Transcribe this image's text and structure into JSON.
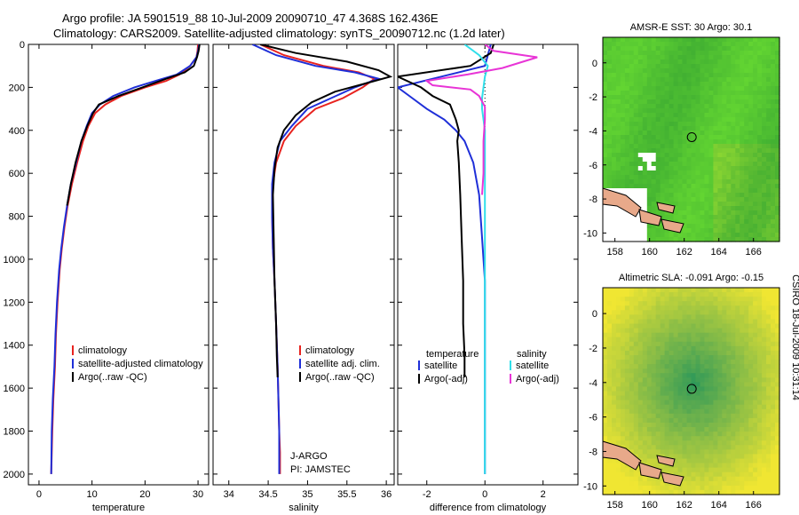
{
  "header": {
    "line1": "Argo profile: JA 5901519_88 10-Jul-2009 20090710_47 4.368S 162.436E",
    "line2": "Climatology: CARS2009. Satellite-adjusted climatology: synTS_20090712.nc (1.2d later)"
  },
  "side_text": "CSIRO 18-Jul-2009 10:31:14",
  "colors": {
    "climatology": "#e8231f",
    "satellite": "#1f2fd8",
    "argo": "#000000",
    "sat_salinity": "#30dfea",
    "argo_salinity": "#e834d6",
    "ocean_green": "#3dbd3d",
    "land": "#e8a98a"
  },
  "chart_data": [
    {
      "type": "line",
      "xlabel": "temperature",
      "xlim": [
        -2,
        32
      ],
      "ylim": [
        0,
        2050
      ],
      "y_reversed": true,
      "xticks": [
        "0",
        "10",
        "20",
        "30"
      ],
      "yticks": [
        "0",
        "200",
        "400",
        "600",
        "800",
        "1000",
        "1200",
        "1400",
        "1600",
        "1800",
        "2000"
      ],
      "legend": {
        "placement": "bottom-right",
        "labels": [
          "climatology",
          "satellite-adjusted climatology",
          "Argo(..raw -QC)"
        ]
      },
      "series": [
        {
          "name": "climatology",
          "x": [
            30,
            29.9,
            29.7,
            28.5,
            26.5,
            24,
            20,
            15.5,
            12.5,
            10.6,
            9.3,
            8.3,
            7.2,
            6.2,
            5.4,
            4.8,
            4.3,
            3.9,
            3.5,
            3.2,
            3,
            2.7,
            2.5,
            2.4,
            2.3
          ],
          "y": [
            0,
            30,
            60,
            100,
            140,
            170,
            200,
            240,
            280,
            320,
            380,
            450,
            550,
            650,
            750,
            850,
            950,
            1050,
            1200,
            1350,
            1500,
            1650,
            1800,
            1900,
            2000
          ]
        },
        {
          "name": "satellite-adjusted climatology",
          "x": [
            30.2,
            30,
            29.7,
            28.5,
            26,
            22,
            18,
            14,
            11.5,
            10,
            9,
            8,
            7,
            6,
            5.3,
            4.7,
            4.2,
            3.8,
            3.4,
            3.1,
            2.9,
            2.6,
            2.4,
            2.35,
            2.3
          ],
          "y": [
            0,
            30,
            60,
            100,
            140,
            170,
            200,
            240,
            280,
            320,
            380,
            450,
            550,
            650,
            750,
            850,
            950,
            1050,
            1200,
            1350,
            1500,
            1650,
            1800,
            1900,
            2000
          ]
        },
        {
          "name": "Argo(..raw -QC)",
          "x": [
            30.3,
            30.1,
            29.8,
            29.2,
            27.5,
            24,
            19.5,
            15,
            11.3,
            10.2,
            9.1,
            8,
            6.9,
            6,
            5.3
          ],
          "y": [
            0,
            30,
            60,
            100,
            130,
            160,
            200,
            240,
            280,
            320,
            380,
            450,
            550,
            650,
            750
          ]
        }
      ]
    },
    {
      "type": "line",
      "xlabel": "salinity",
      "xlim": [
        33.8,
        36.1
      ],
      "ylim": [
        0,
        2050
      ],
      "y_reversed": true,
      "xticks": [
        "34",
        "34.5",
        "35",
        "35.5",
        "36"
      ],
      "legend": {
        "placement": "bottom-right",
        "labels": [
          "climatology",
          "satellite adj. clim.",
          "Argo(..raw -QC)"
        ]
      },
      "annotation": [
        "J-ARGO",
        "PI: JAMSTEC"
      ],
      "series": [
        {
          "name": "climatology",
          "x": [
            34.4,
            34.7,
            35.2,
            35.65,
            35.85,
            35.7,
            35.45,
            35.1,
            34.85,
            34.7,
            34.6,
            34.56,
            34.55,
            34.56,
            34.58,
            34.6,
            34.62,
            34.63,
            34.64,
            34.65,
            34.65
          ],
          "y": [
            0,
            50,
            100,
            130,
            160,
            200,
            250,
            300,
            380,
            450,
            550,
            650,
            800,
            950,
            1100,
            1300,
            1500,
            1650,
            1800,
            1900,
            2000
          ]
        },
        {
          "name": "satellite adj. clim.",
          "x": [
            34.3,
            34.6,
            35.1,
            35.6,
            35.9,
            35.6,
            35.3,
            35,
            34.8,
            34.65,
            34.58,
            34.55,
            34.55,
            34.56,
            34.58,
            34.6,
            34.62,
            34.63,
            34.64,
            34.64,
            34.64
          ],
          "y": [
            0,
            50,
            100,
            130,
            160,
            200,
            250,
            300,
            380,
            450,
            550,
            650,
            800,
            950,
            1100,
            1300,
            1500,
            1650,
            1800,
            1900,
            2000
          ]
        },
        {
          "name": "Argo(..raw -QC)",
          "x": [
            34.4,
            34.85,
            35.5,
            35.9,
            36.05,
            35.75,
            35.35,
            35.05,
            34.85,
            34.7,
            34.62,
            34.58,
            34.56,
            34.57,
            34.58,
            34.6,
            34.61,
            34.62
          ],
          "y": [
            0,
            40,
            80,
            120,
            150,
            180,
            220,
            270,
            330,
            400,
            480,
            580,
            700,
            900,
            1100,
            1300,
            1450,
            1550
          ]
        }
      ]
    },
    {
      "type": "line",
      "xlabel": "difference from climatology",
      "xlim": [
        -3,
        3.2
      ],
      "ylim": [
        0,
        2050
      ],
      "y_reversed": true,
      "xticks": [
        "-2",
        "0",
        "2"
      ],
      "zero_line": "dotted",
      "legend": {
        "placement": "bottom",
        "headers": [
          "temperature",
          "salinity"
        ],
        "labels": [
          "satellite",
          "Argo(-adj)",
          "satellite",
          "Argo(-adj)"
        ]
      },
      "series": [
        {
          "name": "temperature satellite",
          "x": [
            0.2,
            0.1,
            0,
            -1.5,
            -3,
            -2.5,
            -2,
            -1.4,
            -1,
            -0.7,
            -0.4,
            -0.2,
            -0.1,
            0,
            0,
            0,
            0,
            0
          ],
          "y": [
            0,
            50,
            100,
            150,
            200,
            250,
            300,
            350,
            400,
            450,
            550,
            700,
            900,
            1100,
            1400,
            1700,
            1900,
            2000
          ]
        },
        {
          "name": "temperature Argo(-adj)",
          "x": [
            0.3,
            0.2,
            -0.5,
            -3,
            -2.2,
            -1.8,
            -1.2,
            -1,
            -0.9,
            -0.95,
            -0.9,
            -0.85,
            -0.8,
            -0.75,
            -0.75,
            -0.7,
            -0.7
          ],
          "y": [
            0,
            40,
            100,
            150,
            200,
            240,
            280,
            350,
            400,
            450,
            550,
            700,
            900,
            1100,
            1300,
            1450,
            1550
          ]
        },
        {
          "name": "salinity satellite",
          "x": [
            -0.7,
            -0.2,
            0.1,
            0,
            -0.05,
            -0.1,
            -0.1,
            0,
            0,
            0,
            0,
            0
          ],
          "y": [
            0,
            50,
            100,
            150,
            200,
            250,
            300,
            400,
            600,
            800,
            1200,
            2000
          ]
        },
        {
          "name": "salinity Argo(-adj)",
          "x": [
            0,
            0.3,
            1.8,
            0.6,
            -0.6,
            -2,
            -1.8,
            -0.5,
            -0.2,
            0,
            0,
            -0.05,
            -0.05,
            -0.1
          ],
          "y": [
            0,
            30,
            60,
            110,
            140,
            170,
            190,
            210,
            240,
            290,
            350,
            450,
            600,
            700
          ]
        }
      ]
    },
    {
      "type": "heatmap",
      "title": "AMSR-E SST: 30 Argo: 30.1",
      "xticks": [
        "158",
        "160",
        "162",
        "164",
        "166"
      ],
      "yticks": [
        "0",
        "-2",
        "-4",
        "-6",
        "-8",
        "-10"
      ],
      "xlim": [
        157.3,
        167.5
      ],
      "ylim": [
        -10.5,
        1.5
      ],
      "profile_marker": {
        "lon": 162.436,
        "lat": -4.368
      }
    },
    {
      "type": "heatmap",
      "title": "Altimetric SLA: -0.091 Argo: -0.15",
      "xticks": [
        "158",
        "160",
        "162",
        "164",
        "166"
      ],
      "yticks": [
        "0",
        "-2",
        "-4",
        "-6",
        "-8",
        "-10"
      ],
      "xlim": [
        157.3,
        167.5
      ],
      "ylim": [
        -10.5,
        1.5
      ],
      "profile_marker": {
        "lon": 162.436,
        "lat": -4.368
      }
    }
  ]
}
